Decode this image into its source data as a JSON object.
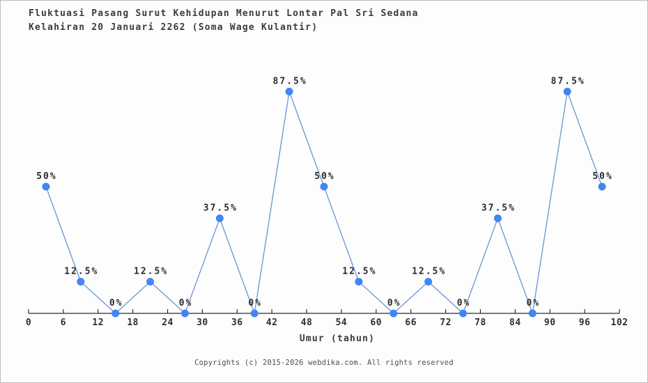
{
  "header": {
    "title_line1": "Fluktuasi Pasang Surut Kehidupan Menurut Lontar Pal Sri Sedana",
    "title_line2": "Kelahiran 20 Januari 2262 (Soma Wage Kulantir)"
  },
  "chart_data": {
    "type": "line",
    "x": [
      3,
      9,
      15,
      21,
      27,
      33,
      39,
      45,
      51,
      57,
      63,
      69,
      75,
      81,
      87,
      93,
      99
    ],
    "values": [
      50,
      12.5,
      0,
      12.5,
      0,
      37.5,
      0,
      87.5,
      50,
      12.5,
      0,
      12.5,
      0,
      37.5,
      0,
      87.5,
      50
    ],
    "point_labels": [
      "50%",
      "12.5%",
      "0%",
      "12.5%",
      "0%",
      "37.5%",
      "0%",
      "87.5%",
      "50%",
      "12.5%",
      "0%",
      "12.5%",
      "0%",
      "37.5%",
      "0%",
      "87.5%",
      "50%"
    ],
    "title": "Fluktuasi Pasang Surut Kehidupan Menurut Lontar Pal Sri Sedana Kelahiran 20 Januari 2262 (Soma Wage Kulantir)",
    "xlabel": "Umur (tahun)",
    "ylabel": "",
    "xlim": [
      0,
      102
    ],
    "ylim": [
      0,
      100
    ],
    "x_ticks": [
      0,
      6,
      12,
      18,
      24,
      30,
      36,
      42,
      48,
      54,
      60,
      66,
      72,
      78,
      84,
      90,
      96,
      102
    ],
    "grid": false,
    "legend": "none",
    "line_color": "#6f9bd8",
    "marker_color": "#4285f4",
    "axis_color": "#2e2e2e"
  },
  "footer": {
    "copyright": "Copyrights (c) 2015-2026 webdika.com. All rights reserved"
  }
}
